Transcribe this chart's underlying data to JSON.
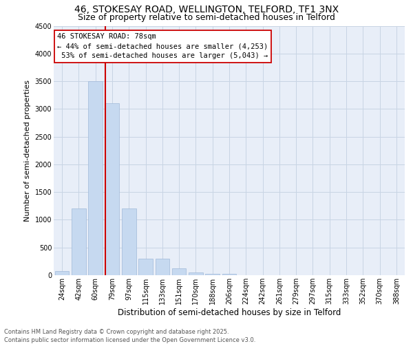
{
  "title": "46, STOKESAY ROAD, WELLINGTON, TELFORD, TF1 3NX",
  "subtitle": "Size of property relative to semi-detached houses in Telford",
  "xlabel": "Distribution of semi-detached houses by size in Telford",
  "ylabel": "Number of semi-detached properties",
  "categories": [
    "24sqm",
    "42sqm",
    "60sqm",
    "79sqm",
    "97sqm",
    "115sqm",
    "133sqm",
    "151sqm",
    "170sqm",
    "188sqm",
    "206sqm",
    "224sqm",
    "242sqm",
    "261sqm",
    "279sqm",
    "297sqm",
    "315sqm",
    "333sqm",
    "352sqm",
    "370sqm",
    "388sqm"
  ],
  "values": [
    80,
    1200,
    3500,
    3100,
    1200,
    300,
    300,
    120,
    50,
    30,
    20,
    5,
    3,
    2,
    1,
    1,
    0,
    0,
    0,
    0,
    0
  ],
  "bar_color": "#c6d9f0",
  "bar_edge_color": "#a0b8d8",
  "property_label": "46 STOKESAY ROAD: 78sqm",
  "pct_smaller": 44,
  "pct_smaller_n": 4253,
  "pct_larger": 53,
  "pct_larger_n": 5043,
  "vline_color": "#cc0000",
  "vline_x": 2.575,
  "ylim": [
    0,
    4500
  ],
  "yticks": [
    0,
    500,
    1000,
    1500,
    2000,
    2500,
    3000,
    3500,
    4000,
    4500
  ],
  "grid_color": "#c8d4e4",
  "bg_color": "#e8eef8",
  "footer1": "Contains HM Land Registry data © Crown copyright and database right 2025.",
  "footer2": "Contains public sector information licensed under the Open Government Licence v3.0.",
  "title_fontsize": 10,
  "subtitle_fontsize": 9,
  "ylabel_fontsize": 8,
  "xlabel_fontsize": 8.5,
  "tick_fontsize": 7,
  "annotation_fontsize": 7.5,
  "footer_fontsize": 6
}
